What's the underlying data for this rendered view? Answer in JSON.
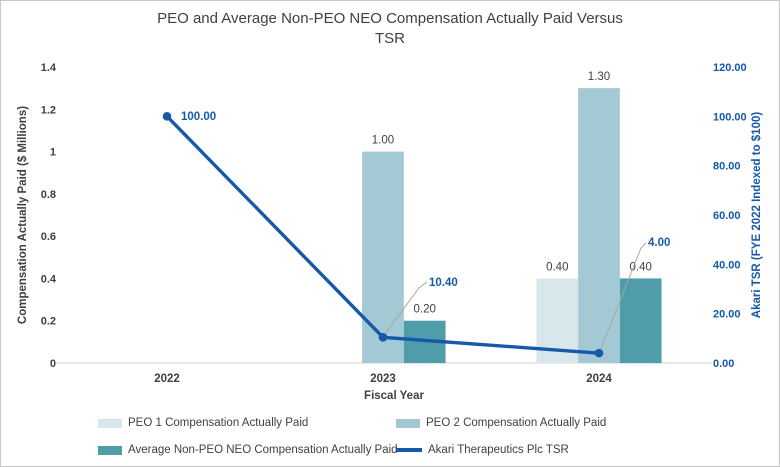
{
  "chart_data": {
    "type": "bar+line combo",
    "title": "PEO and Average Non-PEO NEO Compensation Actually Paid Versus TSR",
    "categories": [
      "2022",
      "2023",
      "2024"
    ],
    "series": [
      {
        "name": "PEO 1 Compensation Actually Paid",
        "type": "bar",
        "axis": "left",
        "color": "#d7e7ec",
        "values": [
          null,
          null,
          0.4
        ],
        "labels": [
          null,
          null,
          "0.40"
        ]
      },
      {
        "name": "PEO 2 Compensation Actually Paid",
        "type": "bar",
        "axis": "left",
        "color": "#a3c9d4",
        "values": [
          null,
          1.0,
          1.3
        ],
        "labels": [
          null,
          "1.00",
          "1.30"
        ]
      },
      {
        "name": "Average Non-PEO NEO Compensation Actually Paid",
        "type": "bar",
        "axis": "left",
        "color": "#4f9daa",
        "values": [
          null,
          0.2,
          0.4
        ],
        "labels": [
          null,
          "0.20",
          "0.40"
        ]
      },
      {
        "name": "Akari Therapeutics Plc TSR",
        "type": "line",
        "axis": "right",
        "color": "#1659a9",
        "values": [
          100.0,
          10.4,
          4.0
        ],
        "labels": [
          "100.00",
          "10.40",
          "4.00"
        ]
      }
    ],
    "left_axis": {
      "title": "Compensation Actually Paid ($ Millions)",
      "ticks": [
        "0",
        "0.2",
        "0.4",
        "0.6",
        "0.8",
        "1",
        "1.2",
        "1.4"
      ],
      "min": 0,
      "max": 1.4
    },
    "right_axis": {
      "title": "Akari TSR (FYE 2022 Indexed to $100)",
      "ticks": [
        "0.00",
        "20.00",
        "40.00",
        "60.00",
        "80.00",
        "100.00",
        "120.00"
      ],
      "min": 0,
      "max": 120
    },
    "x_axis": {
      "title": "Fiscal Year"
    },
    "layout_hints": {
      "gridlines": false,
      "legend_position": "bottom",
      "label_color": "#404040",
      "tsr_accent_color": "#1659a9",
      "axis_line_color": "#d9d9d9"
    }
  }
}
